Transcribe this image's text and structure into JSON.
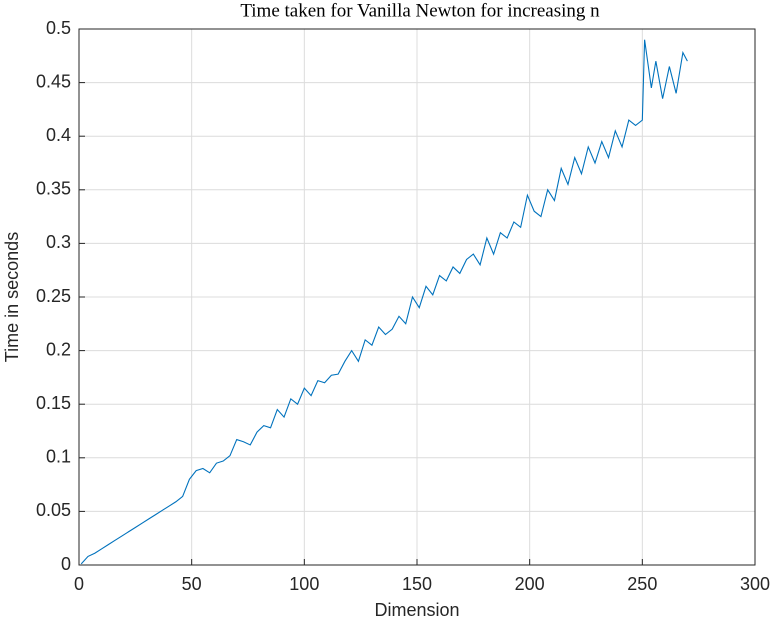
{
  "chart_data": {
    "type": "line",
    "title": "Time taken for Vanilla Newton for increasing n",
    "xlabel": "Dimension",
    "ylabel": "Time in seconds",
    "x": [
      1,
      4,
      7,
      10,
      13,
      16,
      19,
      22,
      25,
      28,
      31,
      34,
      37,
      40,
      43,
      46,
      49,
      52,
      55,
      58,
      61,
      64,
      67,
      70,
      73,
      76,
      79,
      82,
      85,
      88,
      91,
      94,
      97,
      100,
      103,
      106,
      109,
      112,
      115,
      118,
      121,
      124,
      127,
      130,
      133,
      136,
      139,
      142,
      145,
      148,
      151,
      154,
      157,
      160,
      163,
      166,
      169,
      172,
      175,
      178,
      181,
      184,
      187,
      190,
      193,
      196,
      199,
      202,
      205,
      208,
      211,
      214,
      217,
      220,
      223,
      226,
      229,
      232,
      235,
      238,
      241,
      244,
      247,
      250,
      251,
      254,
      256,
      259,
      262,
      265,
      268,
      270
    ],
    "series": [
      {
        "name": "Vanilla Newton",
        "color": "#0072bd",
        "values": [
          0.001,
          0.008,
          0.011,
          0.015,
          0.019,
          0.023,
          0.027,
          0.031,
          0.035,
          0.039,
          0.043,
          0.047,
          0.051,
          0.055,
          0.059,
          0.064,
          0.08,
          0.088,
          0.09,
          0.086,
          0.095,
          0.097,
          0.102,
          0.117,
          0.115,
          0.112,
          0.124,
          0.13,
          0.128,
          0.145,
          0.138,
          0.155,
          0.15,
          0.165,
          0.158,
          0.172,
          0.17,
          0.177,
          0.178,
          0.19,
          0.2,
          0.19,
          0.21,
          0.205,
          0.222,
          0.215,
          0.22,
          0.232,
          0.225,
          0.25,
          0.24,
          0.26,
          0.252,
          0.27,
          0.265,
          0.278,
          0.272,
          0.285,
          0.29,
          0.28,
          0.305,
          0.29,
          0.31,
          0.305,
          0.32,
          0.315,
          0.345,
          0.33,
          0.325,
          0.35,
          0.34,
          0.37,
          0.355,
          0.38,
          0.365,
          0.39,
          0.375,
          0.395,
          0.38,
          0.405,
          0.39,
          0.415,
          0.41,
          0.415,
          0.49,
          0.445,
          0.47,
          0.435,
          0.465,
          0.44,
          0.478,
          0.47
        ]
      }
    ],
    "xlim": [
      0,
      300
    ],
    "xticks": [
      0,
      50,
      100,
      150,
      200,
      250,
      300
    ],
    "ylim": [
      0,
      0.5
    ],
    "yticks": [
      0,
      0.05,
      0.1,
      0.15,
      0.2,
      0.25,
      0.3,
      0.35,
      0.4,
      0.45,
      0.5
    ],
    "grid": true
  }
}
